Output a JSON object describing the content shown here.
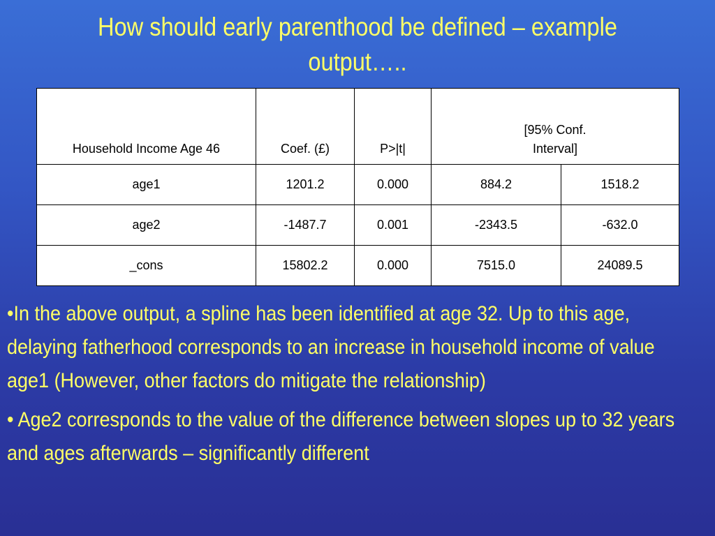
{
  "slide": {
    "title": "How should early parenthood be defined – example output….."
  },
  "table": {
    "headers": {
      "variable": "Household Income Age 46",
      "coef": "Coef. (£)",
      "pvalue": "P>|t|",
      "ci": "[95% Conf. Interval]"
    },
    "rows": [
      {
        "variable": "age1",
        "coef": "1201.2",
        "p": "0.000",
        "ci_low": "884.2",
        "ci_high": "1518.2"
      },
      {
        "variable": "age2",
        "coef": "-1487.7",
        "p": "0.001",
        "ci_low": "-2343.5",
        "ci_high": "-632.0"
      },
      {
        "variable": "_cons",
        "coef": "15802.2",
        "p": "0.000",
        "ci_low": "7515.0",
        "ci_high": "24089.5"
      }
    ]
  },
  "bullets": [
    "•In the above output, a spline has been identified at age 32. Up to this age, delaying fatherhood corresponds to an increase in household income of value age1 (However, other factors do mitigate the relationship)",
    "• Age2 corresponds to the value of the difference between slopes up to 32 years and ages afterwards – significantly different"
  ],
  "colors": {
    "title_text": "#ffff66",
    "bullet_text": "#ffff66",
    "background_top": "#3a6ed6",
    "background_bottom": "#292f94"
  }
}
